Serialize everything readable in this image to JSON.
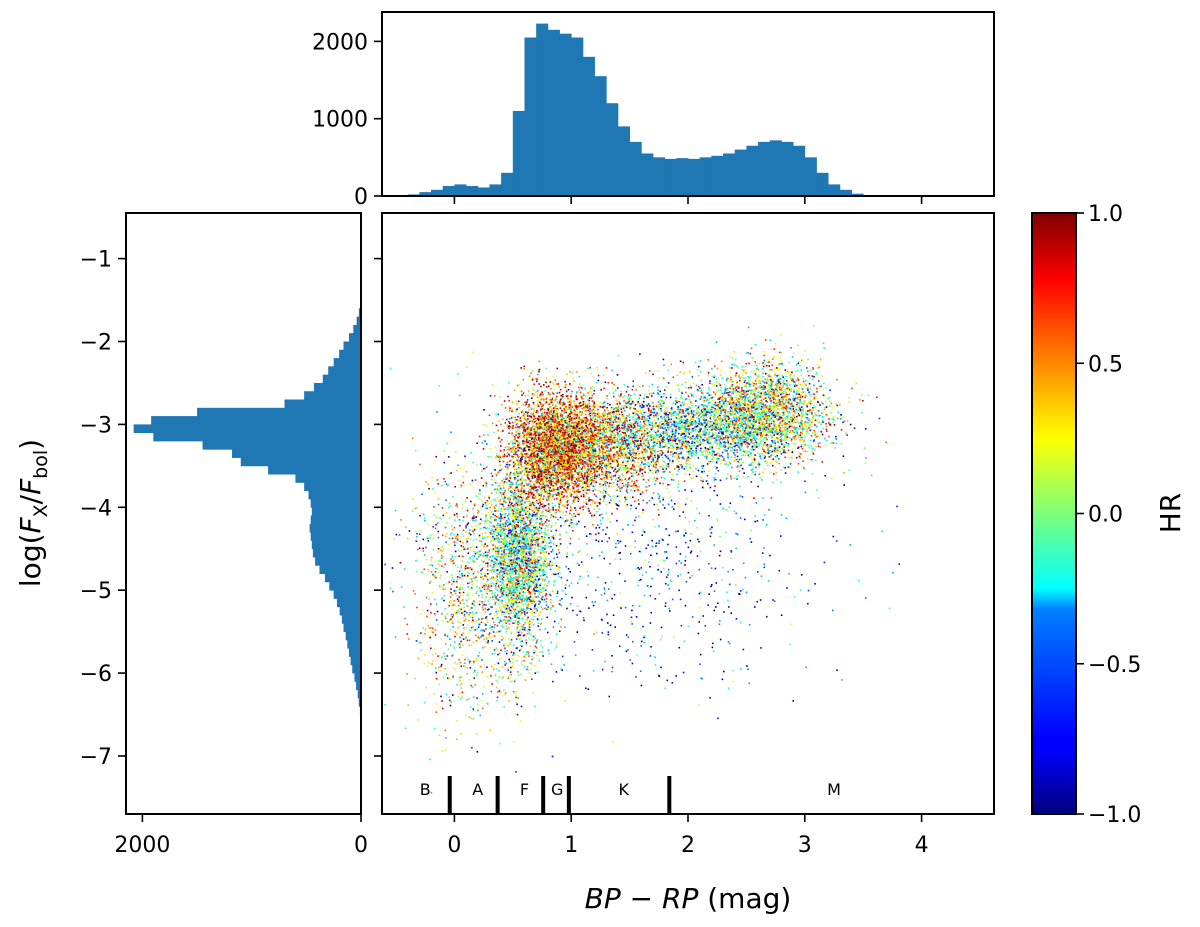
{
  "chart_data": [
    {
      "type": "histogram",
      "panel": "top-marginal",
      "xlabel": "",
      "ylabel": "",
      "xlim": [
        -0.62,
        4.62
      ],
      "ylim": [
        0,
        2380
      ],
      "yticks": [
        0,
        1000,
        2000
      ],
      "bins": {
        "edges": [
          -0.4,
          -0.3,
          -0.2,
          -0.1,
          0.0,
          0.1,
          0.2,
          0.3,
          0.4,
          0.5,
          0.6,
          0.7,
          0.8,
          0.9,
          1.0,
          1.1,
          1.2,
          1.3,
          1.4,
          1.5,
          1.6,
          1.7,
          1.8,
          1.9,
          2.0,
          2.1,
          2.2,
          2.3,
          2.4,
          2.5,
          2.6,
          2.7,
          2.8,
          2.9,
          3.0,
          3.1,
          3.2,
          3.3,
          3.4,
          3.5,
          3.6
        ],
        "counts": [
          20,
          50,
          80,
          130,
          150,
          130,
          110,
          150,
          300,
          1100,
          2050,
          2230,
          2150,
          2100,
          2050,
          1800,
          1550,
          1200,
          900,
          700,
          550,
          500,
          480,
          490,
          480,
          500,
          520,
          550,
          600,
          650,
          700,
          720,
          700,
          650,
          500,
          300,
          150,
          80,
          30,
          10
        ]
      }
    },
    {
      "type": "histogram",
      "panel": "left-marginal",
      "orientation": "horizontal",
      "xlabel": "",
      "ylabel": "log(F_X/F_bol)",
      "xlim": [
        2150,
        0
      ],
      "ylim": [
        -7.7,
        -0.45
      ],
      "xticks": [
        "2000",
        "0"
      ],
      "yticks": [
        "−1",
        "−2",
        "−3",
        "−4",
        "−5",
        "−6",
        "−7"
      ],
      "bins": {
        "edges": [
          -6.6,
          -6.5,
          -6.4,
          -6.3,
          -6.2,
          -6.1,
          -6.0,
          -5.9,
          -5.8,
          -5.7,
          -5.6,
          -5.5,
          -5.4,
          -5.3,
          -5.2,
          -5.1,
          -5.0,
          -4.9,
          -4.8,
          -4.7,
          -4.6,
          -4.5,
          -4.4,
          -4.3,
          -4.2,
          -4.1,
          -4.0,
          -3.9,
          -3.8,
          -3.7,
          -3.6,
          -3.5,
          -3.4,
          -3.3,
          -3.2,
          -3.1,
          -3.0,
          -2.9,
          -2.8,
          -2.7,
          -2.6,
          -2.5,
          -2.4,
          -2.3,
          -2.2,
          -2.1,
          -2.0,
          -1.9,
          -1.8,
          -1.7,
          -1.6
        ],
        "counts": [
          5,
          10,
          20,
          30,
          45,
          60,
          80,
          95,
          110,
          125,
          140,
          160,
          175,
          195,
          220,
          250,
          290,
          330,
          380,
          420,
          440,
          450,
          460,
          470,
          460,
          450,
          460,
          480,
          520,
          600,
          850,
          1100,
          1180,
          1450,
          1900,
          2080,
          1920,
          1500,
          700,
          520,
          430,
          350,
          300,
          250,
          200,
          160,
          110,
          70,
          40,
          20
        ]
      }
    },
    {
      "type": "scatter",
      "panel": "main",
      "xlabel": "BP − RP (mag)",
      "ylabel": "",
      "xlim": [
        -0.62,
        4.62
      ],
      "ylim": [
        -7.7,
        -0.45
      ],
      "xticks": [
        "0",
        "1",
        "2",
        "3",
        "4"
      ],
      "yticks": [
        "−1",
        "−2",
        "−3",
        "−4",
        "−5",
        "−6",
        "−7"
      ],
      "color_by": "HR",
      "colormap": "jet",
      "point_count_approx": 14000,
      "density_components": [
        {
          "mean_x": 0.55,
          "mean_y": -4.6,
          "sd_x": 0.14,
          "sd_y": 0.55,
          "weight": 0.18,
          "mean_hr": 0.0
        },
        {
          "mean_x": 0.85,
          "mean_y": -3.3,
          "sd_x": 0.2,
          "sd_y": 0.35,
          "weight": 0.25,
          "mean_hr": 0.55
        },
        {
          "mean_x": 1.3,
          "mean_y": -3.25,
          "sd_x": 0.3,
          "sd_y": 0.3,
          "weight": 0.14,
          "mean_hr": 0.4
        },
        {
          "mean_x": 2.0,
          "mean_y": -3.05,
          "sd_x": 0.4,
          "sd_y": 0.25,
          "weight": 0.13,
          "mean_hr": -0.2
        },
        {
          "mean_x": 2.65,
          "mean_y": -2.85,
          "sd_x": 0.28,
          "sd_y": 0.3,
          "weight": 0.17,
          "mean_hr": 0.15
        },
        {
          "mean_x": 0.1,
          "mean_y": -5.0,
          "sd_x": 0.25,
          "sd_y": 0.8,
          "weight": 0.07,
          "mean_hr": 0.2
        },
        {
          "mean_x": 1.5,
          "mean_y": -4.5,
          "sd_x": 0.8,
          "sd_y": 0.9,
          "weight": 0.06,
          "mean_hr": -0.6
        }
      ],
      "spectral_types": {
        "boundaries": [
          -0.04,
          0.37,
          0.76,
          0.98,
          1.84
        ],
        "labels": [
          {
            "text": "B",
            "x": -0.25
          },
          {
            "text": "A",
            "x": 0.2
          },
          {
            "text": "F",
            "x": 0.6
          },
          {
            "text": "G",
            "x": 0.88
          },
          {
            "text": "K",
            "x": 1.45
          },
          {
            "text": "M",
            "x": 3.25
          }
        ]
      }
    },
    {
      "type": "colorbar",
      "label": "HR",
      "range": [
        -1.0,
        1.0
      ],
      "ticks": [
        "−1.0",
        "−0.5",
        "0.0",
        "0.5",
        "1.0"
      ],
      "colormap": "jet"
    }
  ]
}
